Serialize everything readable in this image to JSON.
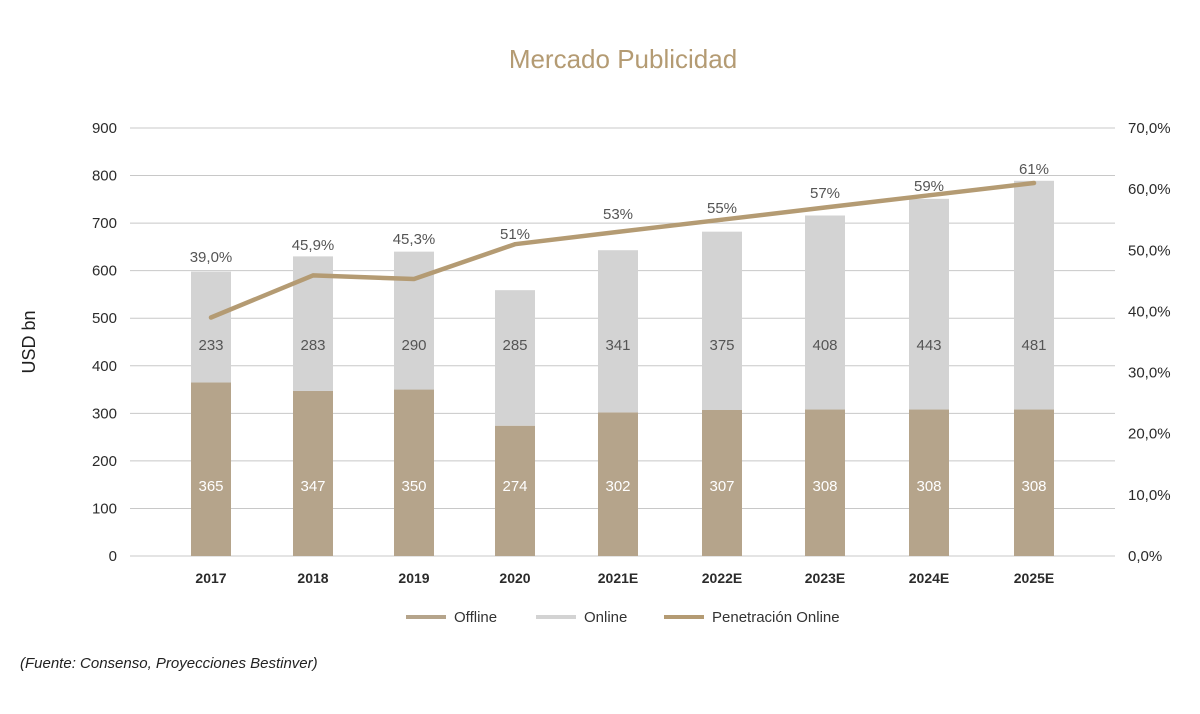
{
  "chart_data": {
    "type": "bar",
    "title": "Mercado Publicidad",
    "ylabel": "USD bn",
    "ylim": [
      0,
      900
    ],
    "y_ticks": [
      "0",
      "100",
      "200",
      "300",
      "400",
      "500",
      "600",
      "700",
      "800",
      "900"
    ],
    "y2lim": [
      0,
      70
    ],
    "y2_ticks": [
      "0,0%",
      "10,0%",
      "20,0%",
      "30,0%",
      "40,0%",
      "50,0%",
      "60,0%",
      "70,0%"
    ],
    "categories": [
      "2017",
      "2018",
      "2019",
      "2020",
      "2021E",
      "2022E",
      "2023E",
      "2024E",
      "2025E"
    ],
    "series": [
      {
        "name": "Offline",
        "kind": "bar",
        "values": [
          365,
          347,
          350,
          274,
          302,
          307,
          308,
          308,
          308
        ],
        "labels": [
          "365",
          "347",
          "350",
          "274",
          "302",
          "307",
          "308",
          "308",
          "308"
        ]
      },
      {
        "name": "Online",
        "kind": "bar",
        "values": [
          233,
          283,
          290,
          285,
          341,
          375,
          408,
          443,
          481
        ],
        "labels": [
          "233",
          "283",
          "290",
          "285",
          "341",
          "375",
          "408",
          "443",
          "481"
        ]
      },
      {
        "name": "Penetración Online",
        "kind": "line",
        "axis": "right",
        "values": [
          39.0,
          45.9,
          45.3,
          51,
          53,
          55,
          57,
          59,
          61
        ],
        "labels": [
          "39,0%",
          "45,9%",
          "45,3%",
          "51%",
          "53%",
          "55%",
          "57%",
          "59%",
          "61%"
        ]
      }
    ],
    "legend": [
      "Offline",
      "Online",
      "Penetración Online"
    ],
    "legend_position": "bottom",
    "grid": true,
    "colors": {
      "offline": "#b5a48b",
      "online": "#d3d3d3",
      "line": "#b49b73",
      "title": "#b49b73"
    }
  },
  "source": "(Fuente: Consenso, Proyecciones Bestinver)"
}
